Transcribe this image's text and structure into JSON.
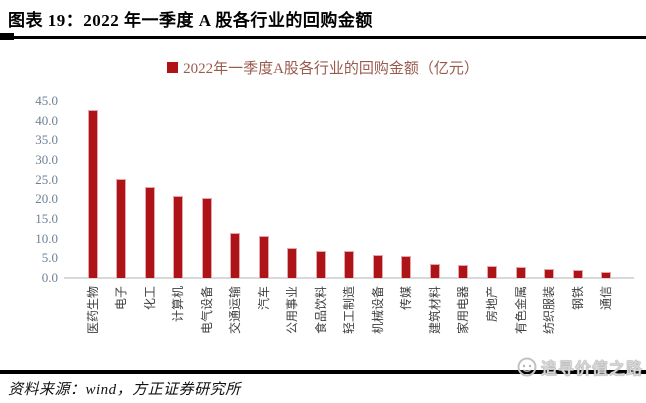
{
  "header": {
    "title": "图表 19：2022 年一季度 A 股各行业的回购金额"
  },
  "legend": {
    "label": "2022年一季度A股各行业的回购金额（亿元）",
    "marker_color": "#AE1318",
    "text_color": "#9A5B4F"
  },
  "chart_data": {
    "type": "bar",
    "title": "2022年一季度A股各行业的回购金额（亿元）",
    "categories": [
      "医药生物",
      "电子",
      "化工",
      "计算机",
      "电气设备",
      "交通运输",
      "汽车",
      "公用事业",
      "食品饮料",
      "轻工制造",
      "机械设备",
      "传媒",
      "建筑材料",
      "家用电器",
      "房地产",
      "有色金属",
      "纺织服装",
      "钢铁",
      "通信"
    ],
    "values": [
      42.7,
      25.1,
      23.1,
      20.9,
      20.3,
      11.5,
      10.7,
      7.7,
      6.9,
      6.8,
      5.8,
      5.6,
      3.6,
      3.2,
      3.0,
      2.9,
      2.2,
      2.0,
      1.6
    ],
    "xlabel": "",
    "ylabel": "",
    "ylim": [
      0,
      45
    ],
    "ytick_labels": [
      "0.0",
      "5.0",
      "10.0",
      "15.0",
      "20.0",
      "25.0",
      "30.0",
      "35.0",
      "40.0",
      "45.0"
    ],
    "grid": false,
    "legend_position": "top",
    "bar_color": "#AE1318",
    "bar_border_color": "#E3A6AA",
    "axis_label_color": "#6F8197",
    "category_label_color": "#3F3F3F"
  },
  "footer": {
    "source": "资料来源：wind，方正证券研究所"
  },
  "watermark": {
    "text": "追寻价值之路"
  }
}
